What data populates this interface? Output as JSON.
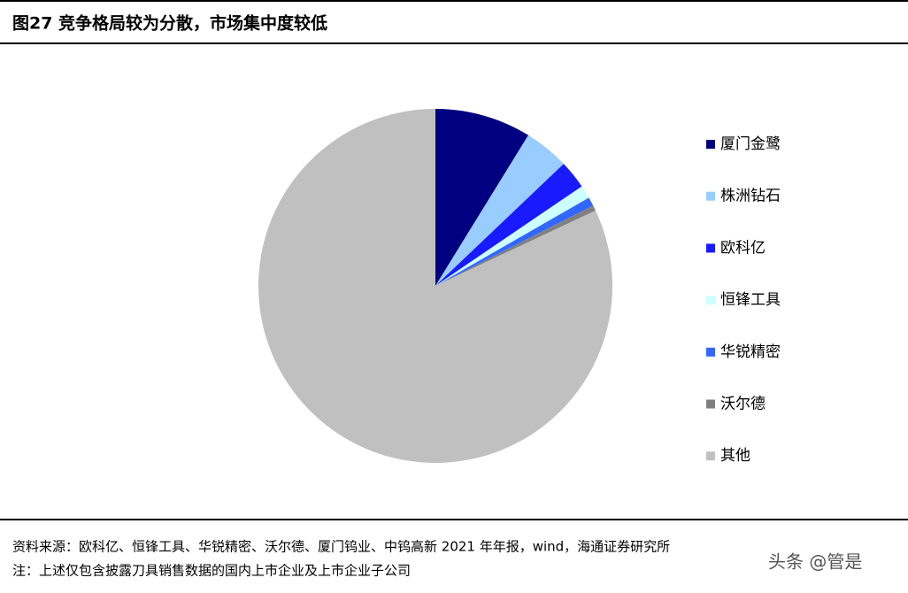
{
  "chart_data": {
    "type": "pie",
    "title": "图27 竞争格局较为分散，市场集中度较低",
    "categories": [
      "厦门金鹭",
      "株洲钻石",
      "欧科亿",
      "恒锋工具",
      "华锐精密",
      "沃尔德",
      "其他"
    ],
    "values": [
      8.8,
      4.1,
      2.6,
      1.2,
      0.8,
      0.5,
      82
    ],
    "colors": [
      "#000080",
      "#99ccff",
      "#1a1aff",
      "#ccffff",
      "#3366ff",
      "#808080",
      "#c0c0c0"
    ],
    "legend": "right"
  },
  "footer": {
    "source": "资料来源：欧科亿、恒锋工具、华锐精密、沃尔德、厦门钨业、中钨高新 2021 年年报，wind，海通证券研究所",
    "note": "注：上述仅包含披露刀具销售数据的国内上市企业及上市企业子公司",
    "watermark": "头条 @管是"
  }
}
